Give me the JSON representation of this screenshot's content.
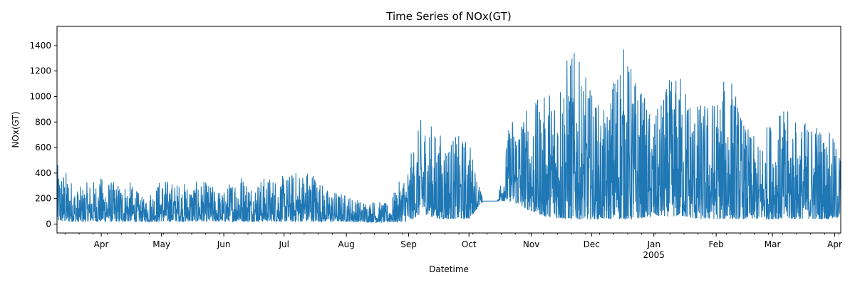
{
  "chart_data": {
    "type": "line",
    "title": "Time Series of NOx(GT)",
    "xlabel": "Datetime",
    "ylabel": "NOx(GT)",
    "xlim": [
      "2004-03-10",
      "2005-04-04"
    ],
    "ylim": [
      -70,
      1550
    ],
    "yticks": [
      0,
      200,
      400,
      600,
      800,
      1000,
      1200,
      1400
    ],
    "ytick_labels": [
      "0",
      "200",
      "400",
      "600",
      "800",
      "1000",
      "1200",
      "1400"
    ],
    "xticks": [
      "2004-04-01",
      "2004-05-01",
      "2004-06-01",
      "2004-07-01",
      "2004-08-01",
      "2004-09-01",
      "2004-10-01",
      "2004-11-01",
      "2004-12-01",
      "2005-01-01",
      "2005-02-01",
      "2005-03-01",
      "2005-04-01"
    ],
    "xtick_labels": [
      "Apr",
      "May",
      "Jun",
      "Jul",
      "Aug",
      "Sep",
      "Oct",
      "Nov",
      "Dec",
      "Jan",
      "Feb",
      "Mar",
      "Apr"
    ],
    "year_label": "2005",
    "grid": false,
    "line_color": "#1f77b4",
    "series": [
      {
        "x": [
          "2004-03-10",
          "2004-03-15",
          "2004-03-20",
          "2004-03-25",
          "2004-04-01",
          "2004-04-08",
          "2004-04-15",
          "2004-04-22",
          "2004-05-01",
          "2004-05-08",
          "2004-05-15",
          "2004-05-22",
          "2004-06-01",
          "2004-06-08",
          "2004-06-15",
          "2004-06-22",
          "2004-07-01",
          "2004-07-08",
          "2004-07-15",
          "2004-07-22",
          "2004-08-01",
          "2004-08-08",
          "2004-08-15",
          "2004-08-22",
          "2004-09-01",
          "2004-09-08",
          "2004-09-15",
          "2004-09-22",
          "2004-10-01",
          "2004-10-08",
          "2004-10-15",
          "2004-10-22",
          "2004-11-01",
          "2004-11-08",
          "2004-11-15",
          "2004-11-22",
          "2004-12-01",
          "2004-12-08",
          "2004-12-15",
          "2004-12-22",
          "2005-01-01",
          "2005-01-08",
          "2005-01-15",
          "2005-01-22",
          "2005-02-01",
          "2005-02-08",
          "2005-02-15",
          "2005-02-22",
          "2005-03-01",
          "2005-03-08",
          "2005-03-15",
          "2005-03-22",
          "2005-04-01",
          "2005-04-04"
        ],
        "y_min": [
          20,
          20,
          15,
          20,
          20,
          20,
          20,
          20,
          20,
          20,
          20,
          20,
          20,
          20,
          20,
          20,
          20,
          20,
          20,
          20,
          20,
          15,
          15,
          15,
          20,
          90,
          40,
          40,
          40,
          180,
          180,
          180,
          100,
          60,
          40,
          40,
          40,
          40,
          40,
          40,
          60,
          60,
          60,
          40,
          40,
          40,
          40,
          40,
          40,
          40,
          40,
          40,
          40,
          60
        ],
        "y_max": [
          470,
          420,
          280,
          330,
          370,
          330,
          340,
          200,
          370,
          330,
          330,
          340,
          260,
          440,
          330,
          380,
          380,
          430,
          450,
          280,
          240,
          190,
          190,
          160,
          490,
          880,
          730,
          700,
          690,
          180,
          180,
          890,
          950,
          1020,
          1280,
          1380,
          1060,
          870,
          1480,
          1220,
          830,
          1130,
          1220,
          960,
          1020,
          1230,
          800,
          640,
          890,
          900,
          810,
          860,
          670,
          600
        ]
      }
    ]
  }
}
